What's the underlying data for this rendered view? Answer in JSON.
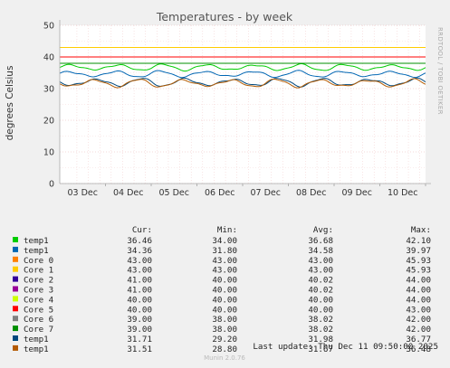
{
  "chart_data": {
    "type": "line",
    "title": "Temperatures - by week",
    "ylabel": "degrees Celsius",
    "ylim": [
      0,
      50
    ],
    "yticks": [
      0,
      10,
      20,
      30,
      40,
      50
    ],
    "xticks": [
      "03 Dec",
      "04 Dec",
      "05 Dec",
      "06 Dec",
      "07 Dec",
      "08 Dec",
      "09 Dec",
      "10 Dec"
    ],
    "grid": true,
    "side_label": "RRDTOOL / TOBI OETIKER",
    "legend_headers": {
      "cur": "Cur:",
      "min": "Min:",
      "avg": "Avg:",
      "max": "Max:"
    },
    "series": [
      {
        "name": "temp1",
        "color": "#00cc00",
        "cur": "36.46",
        "min": "34.00",
        "avg": "36.68",
        "max": "42.10",
        "base": 36.7,
        "amp": 1.2
      },
      {
        "name": "temp1",
        "color": "#0066b3",
        "cur": "34.36",
        "min": "31.80",
        "avg": "34.58",
        "max": "39.97",
        "base": 34.6,
        "amp": 1.2
      },
      {
        "name": "Core 0",
        "color": "#ff8000",
        "cur": "43.00",
        "min": "43.00",
        "avg": "43.00",
        "max": "45.93",
        "base": 43.0,
        "amp": 0
      },
      {
        "name": "Core 1",
        "color": "#ffcc00",
        "cur": "43.00",
        "min": "43.00",
        "avg": "43.00",
        "max": "45.93",
        "base": 43.0,
        "amp": 0
      },
      {
        "name": "Core 2",
        "color": "#330099",
        "cur": "41.00",
        "min": "40.00",
        "avg": "40.02",
        "max": "44.00",
        "base": 40.0,
        "amp": 0
      },
      {
        "name": "Core 3",
        "color": "#990099",
        "cur": "41.00",
        "min": "40.00",
        "avg": "40.02",
        "max": "44.00",
        "base": 40.0,
        "amp": 0
      },
      {
        "name": "Core 4",
        "color": "#ccff00",
        "cur": "40.00",
        "min": "40.00",
        "avg": "40.00",
        "max": "44.00",
        "base": 40.0,
        "amp": 0
      },
      {
        "name": "Core 5",
        "color": "#ff0000",
        "cur": "40.00",
        "min": "40.00",
        "avg": "40.00",
        "max": "43.00",
        "base": 40.0,
        "amp": 0
      },
      {
        "name": "Core 6",
        "color": "#808080",
        "cur": "39.00",
        "min": "38.00",
        "avg": "38.02",
        "max": "42.00",
        "base": 38.0,
        "amp": 0
      },
      {
        "name": "Core 7",
        "color": "#008f00",
        "cur": "39.00",
        "min": "38.00",
        "avg": "38.02",
        "max": "42.00",
        "base": 38.0,
        "amp": 0
      },
      {
        "name": "temp1",
        "color": "#00487d",
        "cur": "31.71",
        "min": "29.20",
        "avg": "31.98",
        "max": "36.77",
        "base": 32.0,
        "amp": 1.5
      },
      {
        "name": "temp1",
        "color": "#b35a00",
        "cur": "31.51",
        "min": "28.80",
        "avg": "31.67",
        "max": "36.48",
        "base": 31.7,
        "amp": 1.5
      }
    ],
    "last_update": "Last update: Thu Dec 11 09:50:00 2025",
    "footer": "Munin 2.0.76"
  }
}
